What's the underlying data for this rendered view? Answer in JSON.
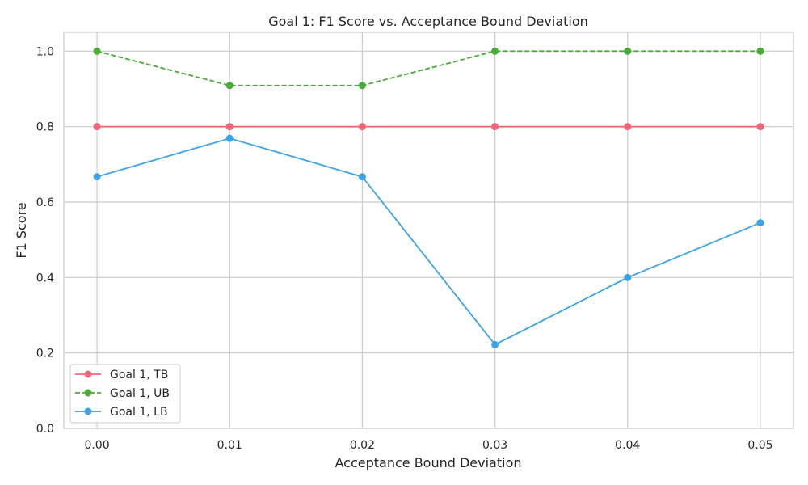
{
  "chart_data": {
    "type": "line",
    "title": "Goal 1: F1 Score vs. Acceptance Bound Deviation",
    "xlabel": "Acceptance Bound Deviation",
    "ylabel": "F1 Score",
    "x": [
      0.0,
      0.01,
      0.02,
      0.03,
      0.04,
      0.05
    ],
    "x_ticks": [
      "0.00",
      "0.01",
      "0.02",
      "0.03",
      "0.04",
      "0.05"
    ],
    "y_ticks": [
      "0.0",
      "0.2",
      "0.4",
      "0.6",
      "0.8",
      "1.0"
    ],
    "xlim": [
      -0.0025,
      0.0525
    ],
    "ylim": [
      0,
      1.05
    ],
    "grid": true,
    "legend_position": "lower-left",
    "series": [
      {
        "name": "Goal 1, TB",
        "color": "#f1677a",
        "dash": "solid",
        "values": [
          0.8,
          0.8,
          0.8,
          0.8,
          0.8,
          0.8
        ]
      },
      {
        "name": "Goal 1, UB",
        "color": "#4aab36",
        "dash": "dashed",
        "values": [
          1.0,
          0.909,
          0.909,
          1.0,
          1.0,
          1.0
        ]
      },
      {
        "name": "Goal 1, LB",
        "color": "#3ba3e7",
        "dash": "solid",
        "values": [
          0.667,
          0.769,
          0.667,
          0.222,
          0.4,
          0.545
        ]
      }
    ]
  }
}
